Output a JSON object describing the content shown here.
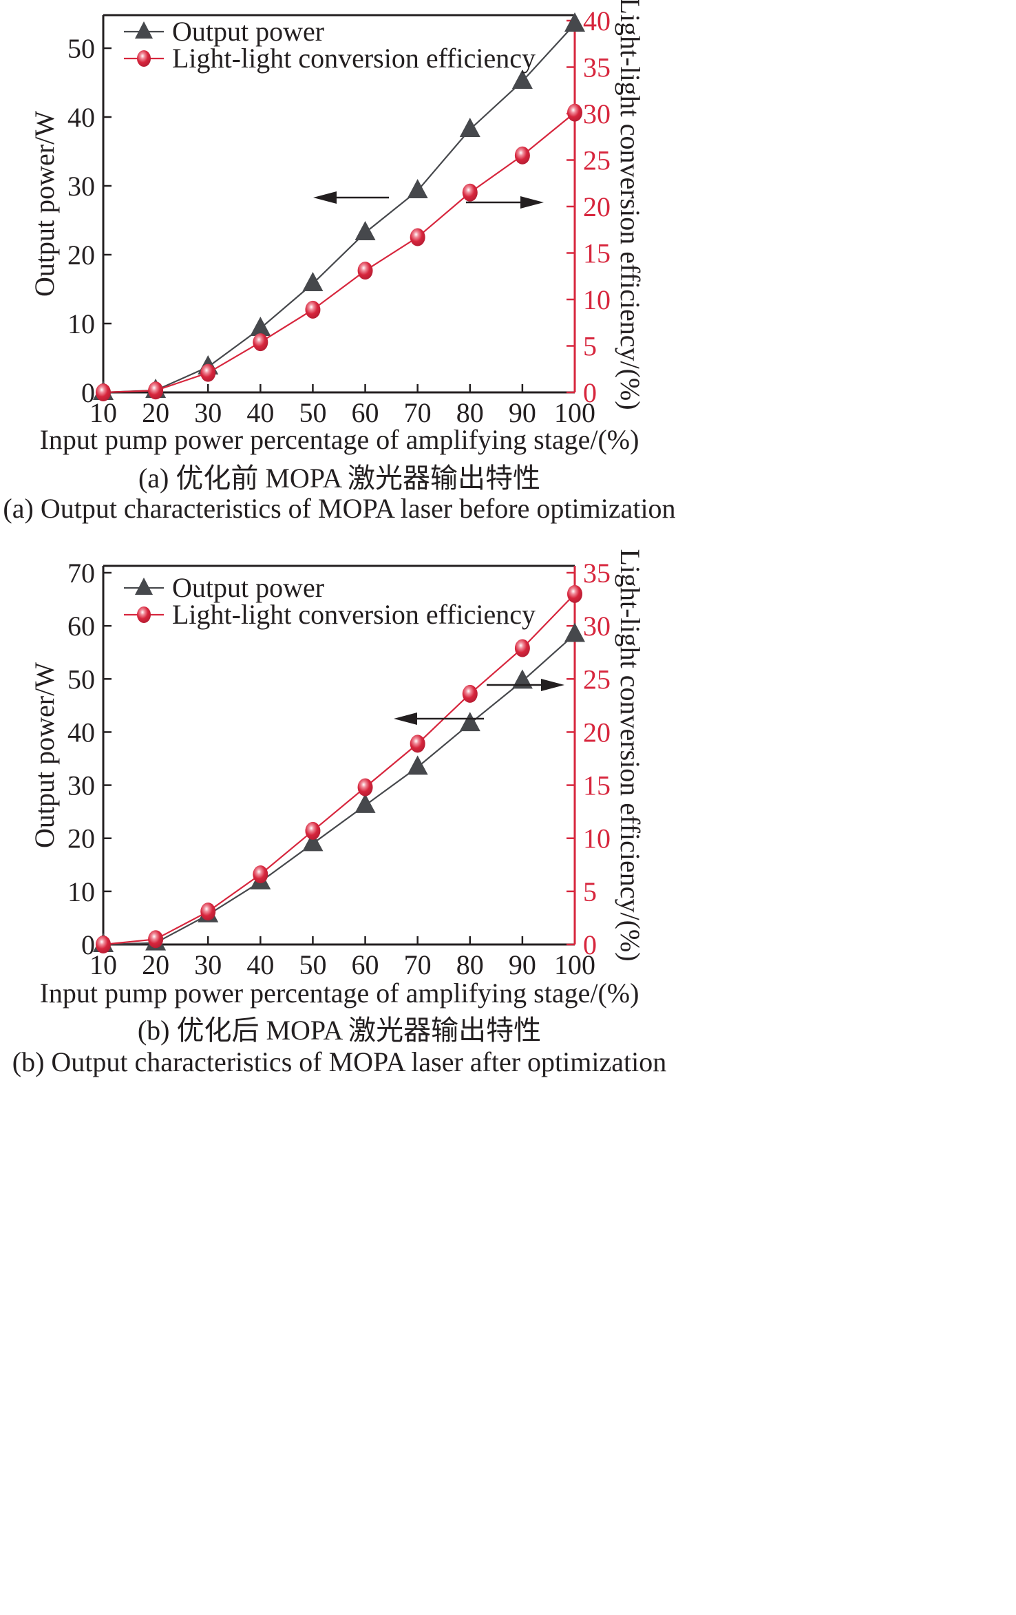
{
  "chart_data": [
    {
      "type": "line",
      "id": "a",
      "title": "",
      "xlabel": "Input pump power percentage of amplifying stage/(%)",
      "ylabel": "Output power/W",
      "ylabel_right": "Light-light conversion efficiency/(%)",
      "x": [
        10,
        20,
        30,
        40,
        50,
        60,
        70,
        80,
        90,
        100
      ],
      "xlim": [
        10,
        100
      ],
      "xticks": [
        10,
        20,
        30,
        40,
        50,
        60,
        70,
        80,
        90,
        100
      ],
      "ylim": [
        0,
        55
      ],
      "yticks": [
        0,
        10,
        20,
        30,
        40,
        50
      ],
      "ylim_right": [
        0,
        40
      ],
      "yticks_right": [
        0,
        5,
        10,
        15,
        20,
        25,
        30,
        35,
        40
      ],
      "grid": false,
      "legend_position": "top-left",
      "series": [
        {
          "name": "Output power",
          "axis": "left",
          "marker": "triangle",
          "color": "#46484c",
          "values": [
            0,
            0.3,
            3.7,
            9.3,
            15.8,
            23.2,
            29.3,
            38.2,
            45.2,
            53.5
          ]
        },
        {
          "name": "Light-light conversion efficiency",
          "axis": "right",
          "marker": "circle",
          "color": "#d7263d",
          "values": [
            0,
            0.2,
            2.1,
            5.4,
            8.9,
            13.1,
            16.7,
            21.5,
            25.5,
            30.1
          ]
        }
      ],
      "annotations": [
        {
          "type": "arrow",
          "direction": "left",
          "meaning": "Output power series uses left axis"
        },
        {
          "type": "arrow",
          "direction": "right",
          "meaning": "Efficiency series uses right axis"
        }
      ],
      "caption_cn": "(a) 优化前 MOPA 激光器输出特性",
      "caption_en": "(a) Output characteristics of MOPA laser before optimization"
    },
    {
      "type": "line",
      "id": "b",
      "title": "",
      "xlabel": "Input pump power percentage of amplifying stage/(%)",
      "ylabel": "Output power/W",
      "ylabel_right": "Light-light conversion efficiency/(%)",
      "x": [
        10,
        20,
        30,
        40,
        50,
        60,
        70,
        80,
        90,
        100
      ],
      "xlim": [
        10,
        100
      ],
      "xticks": [
        10,
        20,
        30,
        40,
        50,
        60,
        70,
        80,
        90,
        100
      ],
      "ylim": [
        0,
        70
      ],
      "yticks": [
        0,
        10,
        20,
        30,
        40,
        50,
        60,
        70
      ],
      "ylim_right": [
        0,
        35
      ],
      "yticks_right": [
        0,
        5,
        10,
        15,
        20,
        25,
        30,
        35
      ],
      "grid": false,
      "legend_position": "top-left",
      "series": [
        {
          "name": "Output power",
          "axis": "left",
          "marker": "triangle",
          "color": "#46484c",
          "values": [
            0,
            0.3,
            5.6,
            11.8,
            19.0,
            26.2,
            33.4,
            41.6,
            49.6,
            58.4
          ]
        },
        {
          "name": "Light-light conversion efficiency",
          "axis": "right",
          "marker": "circle",
          "color": "#d7263d",
          "values": [
            0,
            0.5,
            3.1,
            6.6,
            10.7,
            14.8,
            18.9,
            23.6,
            27.9,
            33.0
          ]
        }
      ],
      "annotations": [
        {
          "type": "arrow",
          "direction": "left",
          "meaning": "Output power series uses left axis"
        },
        {
          "type": "arrow",
          "direction": "right",
          "meaning": "Efficiency series uses right axis"
        }
      ],
      "caption_cn": "(b) 优化后 MOPA 激光器输出特性",
      "caption_en": "(b) Output characteristics of MOPA laser after optimization"
    }
  ]
}
